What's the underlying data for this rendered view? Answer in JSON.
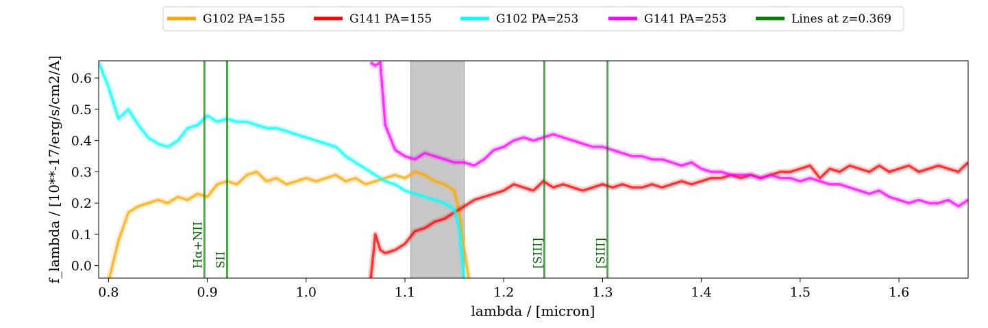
{
  "chart_data": {
    "type": "line",
    "xlabel": "lambda / [micron]",
    "ylabel": "f_lambda / [10**-17/erg/s/cm2/A]",
    "xlim": [
      0.79,
      1.67
    ],
    "ylim": [
      -0.04,
      0.655
    ],
    "xticks": [
      0.8,
      0.9,
      1.0,
      1.1,
      1.2,
      1.3,
      1.4,
      1.5,
      1.6
    ],
    "xtick_labels": [
      "0.8",
      "0.9",
      "1.0",
      "1.1",
      "1.2",
      "1.3",
      "1.4",
      "1.5",
      "1.6"
    ],
    "yticks": [
      0.0,
      0.1,
      0.2,
      0.3,
      0.4,
      0.5,
      0.6
    ],
    "ytick_labels": [
      "0.0",
      "0.1",
      "0.2",
      "0.3",
      "0.4",
      "0.5",
      "0.6"
    ],
    "grid": false,
    "legend_position": "top-center, outside plot",
    "shaded_region": {
      "x0": 1.106,
      "x1": 1.16,
      "color": "#c8c8c8"
    },
    "series": [
      {
        "name": "G102 PA=155",
        "color": "#ffa500",
        "x": [
          0.79,
          0.8,
          0.81,
          0.82,
          0.83,
          0.84,
          0.85,
          0.86,
          0.87,
          0.88,
          0.89,
          0.9,
          0.91,
          0.92,
          0.93,
          0.94,
          0.95,
          0.96,
          0.97,
          0.98,
          0.99,
          1.0,
          1.01,
          1.02,
          1.03,
          1.04,
          1.05,
          1.06,
          1.07,
          1.08,
          1.09,
          1.1,
          1.11,
          1.12,
          1.13,
          1.14,
          1.15,
          1.155,
          1.16,
          1.165
        ],
        "y": [
          -0.05,
          -0.05,
          0.08,
          0.17,
          0.19,
          0.2,
          0.21,
          0.2,
          0.22,
          0.21,
          0.23,
          0.22,
          0.26,
          0.27,
          0.26,
          0.29,
          0.3,
          0.27,
          0.28,
          0.26,
          0.27,
          0.28,
          0.27,
          0.28,
          0.29,
          0.27,
          0.28,
          0.26,
          0.27,
          0.28,
          0.29,
          0.28,
          0.3,
          0.29,
          0.27,
          0.26,
          0.24,
          0.17,
          0.05,
          -0.05
        ]
      },
      {
        "name": "G141 PA=155",
        "color": "#ff0000",
        "x": [
          1.065,
          1.07,
          1.075,
          1.08,
          1.09,
          1.1,
          1.11,
          1.12,
          1.13,
          1.14,
          1.15,
          1.16,
          1.17,
          1.18,
          1.19,
          1.2,
          1.21,
          1.22,
          1.23,
          1.24,
          1.25,
          1.26,
          1.27,
          1.28,
          1.29,
          1.3,
          1.31,
          1.32,
          1.33,
          1.34,
          1.35,
          1.36,
          1.37,
          1.38,
          1.39,
          1.4,
          1.41,
          1.42,
          1.43,
          1.44,
          1.45,
          1.46,
          1.47,
          1.48,
          1.49,
          1.5,
          1.51,
          1.52,
          1.53,
          1.54,
          1.55,
          1.56,
          1.57,
          1.58,
          1.59,
          1.6,
          1.61,
          1.62,
          1.63,
          1.64,
          1.65,
          1.66,
          1.67
        ],
        "y": [
          -0.05,
          0.1,
          0.05,
          0.04,
          0.05,
          0.07,
          0.11,
          0.12,
          0.14,
          0.15,
          0.17,
          0.19,
          0.21,
          0.22,
          0.23,
          0.24,
          0.26,
          0.25,
          0.24,
          0.27,
          0.25,
          0.26,
          0.25,
          0.24,
          0.25,
          0.26,
          0.25,
          0.26,
          0.25,
          0.25,
          0.26,
          0.25,
          0.26,
          0.27,
          0.26,
          0.27,
          0.28,
          0.28,
          0.29,
          0.28,
          0.29,
          0.28,
          0.29,
          0.3,
          0.3,
          0.31,
          0.32,
          0.28,
          0.31,
          0.3,
          0.32,
          0.31,
          0.3,
          0.32,
          0.3,
          0.31,
          0.32,
          0.3,
          0.31,
          0.32,
          0.31,
          0.3,
          0.33
        ]
      },
      {
        "name": "G102 PA=253",
        "color": "#00ffff",
        "x": [
          0.79,
          0.8,
          0.81,
          0.82,
          0.83,
          0.84,
          0.85,
          0.86,
          0.87,
          0.88,
          0.89,
          0.9,
          0.91,
          0.92,
          0.93,
          0.94,
          0.95,
          0.96,
          0.97,
          0.98,
          0.99,
          1.0,
          1.01,
          1.02,
          1.03,
          1.04,
          1.05,
          1.06,
          1.07,
          1.08,
          1.09,
          1.1,
          1.11,
          1.12,
          1.13,
          1.14,
          1.15,
          1.155,
          1.16
        ],
        "y": [
          0.65,
          0.57,
          0.47,
          0.5,
          0.45,
          0.41,
          0.39,
          0.38,
          0.4,
          0.44,
          0.45,
          0.48,
          0.46,
          0.47,
          0.46,
          0.46,
          0.45,
          0.44,
          0.44,
          0.43,
          0.42,
          0.41,
          0.4,
          0.39,
          0.38,
          0.35,
          0.33,
          0.31,
          0.29,
          0.27,
          0.26,
          0.24,
          0.23,
          0.22,
          0.21,
          0.2,
          0.18,
          0.12,
          -0.05
        ]
      },
      {
        "name": "G141 PA=253",
        "color": "#ff00ff",
        "x": [
          1.065,
          1.07,
          1.075,
          1.08,
          1.09,
          1.1,
          1.11,
          1.12,
          1.13,
          1.14,
          1.15,
          1.16,
          1.17,
          1.18,
          1.19,
          1.2,
          1.21,
          1.22,
          1.23,
          1.24,
          1.25,
          1.26,
          1.27,
          1.28,
          1.29,
          1.3,
          1.31,
          1.32,
          1.33,
          1.34,
          1.35,
          1.36,
          1.37,
          1.38,
          1.39,
          1.4,
          1.41,
          1.42,
          1.43,
          1.44,
          1.45,
          1.46,
          1.47,
          1.48,
          1.49,
          1.5,
          1.51,
          1.52,
          1.53,
          1.54,
          1.55,
          1.56,
          1.57,
          1.58,
          1.59,
          1.6,
          1.61,
          1.62,
          1.63,
          1.64,
          1.65,
          1.66,
          1.67
        ],
        "y": [
          0.65,
          0.64,
          0.65,
          0.45,
          0.37,
          0.35,
          0.34,
          0.36,
          0.35,
          0.34,
          0.33,
          0.33,
          0.32,
          0.34,
          0.37,
          0.38,
          0.4,
          0.41,
          0.4,
          0.41,
          0.42,
          0.41,
          0.4,
          0.39,
          0.38,
          0.38,
          0.37,
          0.36,
          0.35,
          0.35,
          0.34,
          0.34,
          0.33,
          0.32,
          0.33,
          0.31,
          0.3,
          0.3,
          0.29,
          0.29,
          0.29,
          0.28,
          0.29,
          0.28,
          0.28,
          0.27,
          0.28,
          0.27,
          0.26,
          0.26,
          0.25,
          0.24,
          0.23,
          0.24,
          0.22,
          0.21,
          0.2,
          0.21,
          0.2,
          0.2,
          0.21,
          0.19,
          0.21
        ]
      }
    ],
    "lines_series": {
      "name": "Lines at z=0.369",
      "color": "#008000"
    },
    "vertical_lines": [
      {
        "x": 0.897,
        "label": "Hα+NII"
      },
      {
        "x": 0.92,
        "label": "SII"
      },
      {
        "x": 1.241,
        "label": "[SIII]"
      },
      {
        "x": 1.305,
        "label": "[SIII]"
      }
    ],
    "legend": [
      {
        "label": "G102 PA=155",
        "color": "#ffa500"
      },
      {
        "label": "G141 PA=155",
        "color": "#ff0000"
      },
      {
        "label": "G102 PA=253",
        "color": "#00ffff"
      },
      {
        "label": "G141 PA=253",
        "color": "#ff00ff"
      },
      {
        "label": "Lines at z=0.369",
        "color": "#008000"
      }
    ]
  }
}
